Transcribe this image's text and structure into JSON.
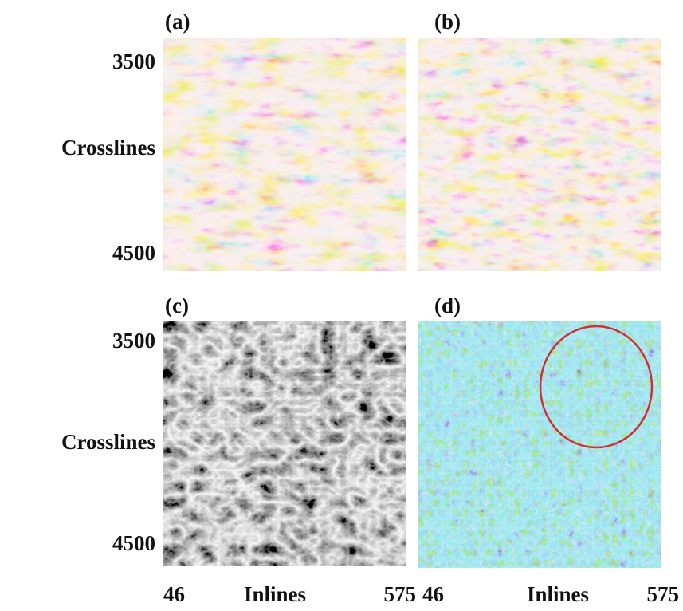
{
  "panels": [
    {
      "label": "(a)"
    },
    {
      "label": "(b)"
    },
    {
      "label": "(c)"
    },
    {
      "label": "(d)"
    }
  ],
  "rows": [
    {
      "y_top": "3500",
      "y_axis": "Crosslines",
      "y_bottom": "4500"
    },
    {
      "y_top": "3500",
      "y_axis": "Crosslines",
      "y_bottom": "4500"
    }
  ],
  "columns": [
    {
      "x_left": "46",
      "x_axis": "Inlines",
      "x_right": "575"
    },
    {
      "x_left": "46",
      "x_axis": "Inlines",
      "x_right": "575"
    }
  ]
}
